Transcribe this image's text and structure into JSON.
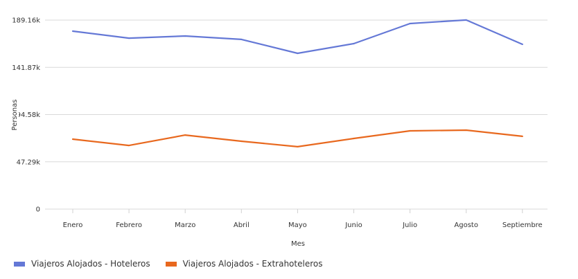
{
  "chart_data": {
    "type": "line",
    "title": "",
    "xlabel": "Mes",
    "ylabel": "Personas",
    "categories": [
      "Enero",
      "Febrero",
      "Marzo",
      "Abril",
      "Mayo",
      "Junio",
      "Julio",
      "Agosto",
      "Septiembre"
    ],
    "y_ticks": [
      0,
      47290,
      94580,
      141870,
      189160
    ],
    "y_tick_labels": [
      "0",
      "47.29k",
      "94.58k",
      "141.87k",
      "189.16k"
    ],
    "ylim": [
      0,
      189160
    ],
    "grid": true,
    "legend_position": "bottom-left",
    "series": [
      {
        "name": "Viajeros Alojados - Hoteleros",
        "color": "#6478d6",
        "values": [
          178100,
          171100,
          173200,
          169800,
          155900,
          165600,
          185700,
          189200,
          164900
        ]
      },
      {
        "name": "Viajeros Alojados - Extrahoteleros",
        "color": "#e8681e",
        "values": [
          70000,
          63700,
          74100,
          67900,
          62400,
          70700,
          78300,
          79000,
          72800
        ]
      }
    ]
  }
}
